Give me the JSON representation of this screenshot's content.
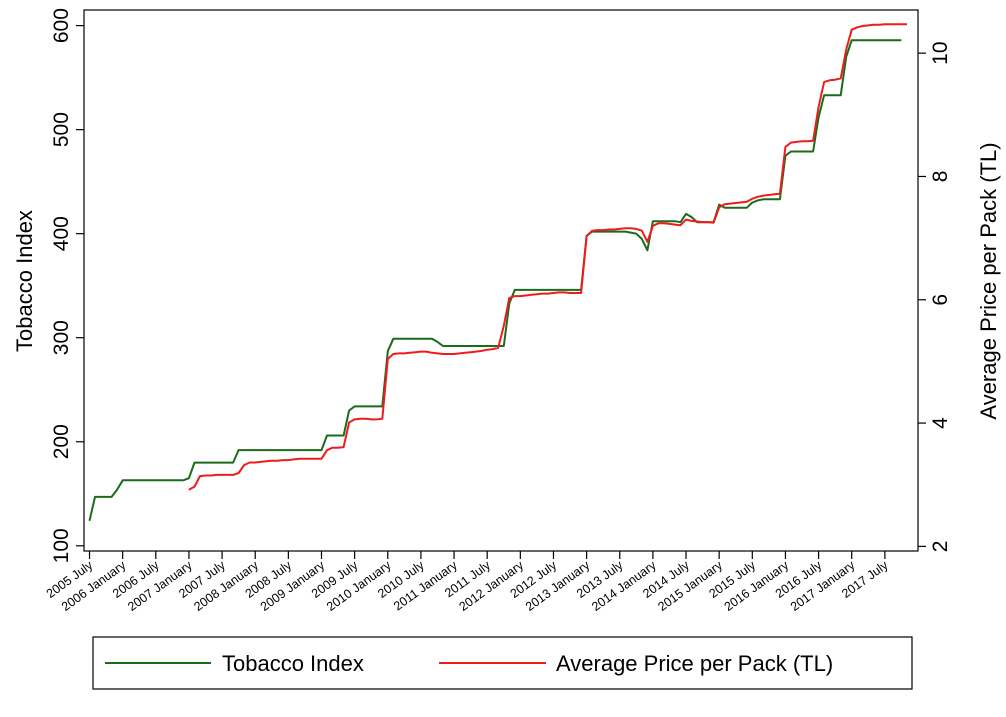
{
  "chart_data": {
    "type": "line",
    "xlabel": "",
    "ylabel_left": "Tobacco Index",
    "ylabel_right": "Average Price per Pack (TL)",
    "grid": false,
    "legend_position": "bottom",
    "x_ticks": [
      "2005 July",
      "2006 January",
      "2006 July",
      "2007 January",
      "2007 July",
      "2008 January",
      "2008 July",
      "2009 January",
      "2009 July",
      "2010 January",
      "2010 July",
      "2011 January",
      "2011 July",
      "2012 January",
      "2012 July",
      "2013 January",
      "2013 July",
      "2014 January",
      "2014 July",
      "2015 January",
      "2015 July",
      "2016 January",
      "2016 July",
      "2017 January",
      "2017 July"
    ],
    "x_range": [
      "2005-06",
      "2018-01"
    ],
    "y_left": {
      "ticks": [
        100,
        200,
        300,
        400,
        500,
        600
      ],
      "range": [
        95,
        615
      ]
    },
    "y_right": {
      "ticks": [
        2,
        4,
        6,
        8,
        10
      ],
      "range": [
        1.925,
        10.7
      ]
    },
    "series": [
      {
        "name": "Tobacco Index",
        "axis": "left",
        "color": "#1a6b1a",
        "points": [
          [
            "2005-07",
            124
          ],
          [
            "2005-08",
            147
          ],
          [
            "2005-09",
            147
          ],
          [
            "2005-10",
            147
          ],
          [
            "2005-11",
            147
          ],
          [
            "2005-12",
            154
          ],
          [
            "2006-01",
            163
          ],
          [
            "2006-02",
            163
          ],
          [
            "2006-03",
            163
          ],
          [
            "2006-04",
            163
          ],
          [
            "2006-05",
            163
          ],
          [
            "2006-06",
            163
          ],
          [
            "2006-07",
            163
          ],
          [
            "2006-08",
            163
          ],
          [
            "2006-09",
            163
          ],
          [
            "2006-10",
            163
          ],
          [
            "2006-11",
            163
          ],
          [
            "2006-12",
            163
          ],
          [
            "2007-01",
            165
          ],
          [
            "2007-02",
            180
          ],
          [
            "2007-03",
            180
          ],
          [
            "2007-04",
            180
          ],
          [
            "2007-05",
            180
          ],
          [
            "2007-06",
            180
          ],
          [
            "2007-07",
            180
          ],
          [
            "2007-08",
            180
          ],
          [
            "2007-09",
            180
          ],
          [
            "2007-10",
            192
          ],
          [
            "2007-11",
            192
          ],
          [
            "2007-12",
            192
          ],
          [
            "2008-01",
            192
          ],
          [
            "2008-02",
            192
          ],
          [
            "2008-03",
            192
          ],
          [
            "2008-04",
            192
          ],
          [
            "2008-05",
            192
          ],
          [
            "2008-06",
            192
          ],
          [
            "2008-07",
            192
          ],
          [
            "2008-08",
            192
          ],
          [
            "2008-09",
            192
          ],
          [
            "2008-10",
            192
          ],
          [
            "2008-11",
            192
          ],
          [
            "2008-12",
            192
          ],
          [
            "2009-01",
            192
          ],
          [
            "2009-02",
            206
          ],
          [
            "2009-03",
            206
          ],
          [
            "2009-04",
            206
          ],
          [
            "2009-05",
            206
          ],
          [
            "2009-06",
            230
          ],
          [
            "2009-07",
            234
          ],
          [
            "2009-08",
            234
          ],
          [
            "2009-09",
            234
          ],
          [
            "2009-10",
            234
          ],
          [
            "2009-11",
            234
          ],
          [
            "2009-12",
            234
          ],
          [
            "2010-01",
            287
          ],
          [
            "2010-02",
            299
          ],
          [
            "2010-03",
            299
          ],
          [
            "2010-04",
            299
          ],
          [
            "2010-05",
            299
          ],
          [
            "2010-06",
            299
          ],
          [
            "2010-07",
            299
          ],
          [
            "2010-08",
            299
          ],
          [
            "2010-09",
            299
          ],
          [
            "2010-10",
            296
          ],
          [
            "2010-11",
            292
          ],
          [
            "2010-12",
            292
          ],
          [
            "2011-01",
            292
          ],
          [
            "2011-02",
            292
          ],
          [
            "2011-03",
            292
          ],
          [
            "2011-04",
            292
          ],
          [
            "2011-05",
            292
          ],
          [
            "2011-06",
            292
          ],
          [
            "2011-07",
            292
          ],
          [
            "2011-08",
            292
          ],
          [
            "2011-09",
            292
          ],
          [
            "2011-10",
            292
          ],
          [
            "2011-11",
            333
          ],
          [
            "2011-12",
            346
          ],
          [
            "2012-01",
            346
          ],
          [
            "2012-02",
            346
          ],
          [
            "2012-03",
            346
          ],
          [
            "2012-04",
            346
          ],
          [
            "2012-05",
            346
          ],
          [
            "2012-06",
            346
          ],
          [
            "2012-07",
            346
          ],
          [
            "2012-08",
            346
          ],
          [
            "2012-09",
            346
          ],
          [
            "2012-10",
            346
          ],
          [
            "2012-11",
            346
          ],
          [
            "2012-12",
            346
          ],
          [
            "2013-01",
            398
          ],
          [
            "2013-02",
            402
          ],
          [
            "2013-03",
            402
          ],
          [
            "2013-04",
            402
          ],
          [
            "2013-05",
            402
          ],
          [
            "2013-06",
            402
          ],
          [
            "2013-07",
            402
          ],
          [
            "2013-08",
            402
          ],
          [
            "2013-09",
            401
          ],
          [
            "2013-10",
            400
          ],
          [
            "2013-11",
            395
          ],
          [
            "2013-12",
            384
          ],
          [
            "2014-01",
            412
          ],
          [
            "2014-02",
            412
          ],
          [
            "2014-03",
            412
          ],
          [
            "2014-04",
            412
          ],
          [
            "2014-05",
            412
          ],
          [
            "2014-06",
            411
          ],
          [
            "2014-07",
            419
          ],
          [
            "2014-08",
            416
          ],
          [
            "2014-09",
            411
          ],
          [
            "2014-10",
            411
          ],
          [
            "2014-11",
            411
          ],
          [
            "2014-12",
            411
          ],
          [
            "2015-01",
            428
          ],
          [
            "2015-02",
            425
          ],
          [
            "2015-03",
            425
          ],
          [
            "2015-04",
            425
          ],
          [
            "2015-05",
            425
          ],
          [
            "2015-06",
            425
          ],
          [
            "2015-07",
            430
          ],
          [
            "2015-08",
            432
          ],
          [
            "2015-09",
            433
          ],
          [
            "2015-10",
            433
          ],
          [
            "2015-11",
            433
          ],
          [
            "2015-12",
            433
          ],
          [
            "2016-01",
            475
          ],
          [
            "2016-02",
            479
          ],
          [
            "2016-03",
            479
          ],
          [
            "2016-04",
            479
          ],
          [
            "2016-05",
            479
          ],
          [
            "2016-06",
            479
          ],
          [
            "2016-07",
            512
          ],
          [
            "2016-08",
            533
          ],
          [
            "2016-09",
            533
          ],
          [
            "2016-10",
            533
          ],
          [
            "2016-11",
            533
          ],
          [
            "2016-12",
            570
          ],
          [
            "2017-01",
            586
          ],
          [
            "2017-02",
            586
          ],
          [
            "2017-03",
            586
          ],
          [
            "2017-04",
            586
          ],
          [
            "2017-05",
            586
          ],
          [
            "2017-06",
            586
          ],
          [
            "2017-07",
            586
          ],
          [
            "2017-08",
            586
          ],
          [
            "2017-09",
            586
          ],
          [
            "2017-10",
            586
          ]
        ]
      },
      {
        "name": "Average Price per Pack (TL)",
        "axis": "right",
        "color": "#ee1c1c",
        "points": [
          [
            "2007-01",
            2.92
          ],
          [
            "2007-02",
            2.97
          ],
          [
            "2007-03",
            3.14
          ],
          [
            "2007-04",
            3.15
          ],
          [
            "2007-05",
            3.15
          ],
          [
            "2007-06",
            3.16
          ],
          [
            "2007-07",
            3.16
          ],
          [
            "2007-08",
            3.16
          ],
          [
            "2007-09",
            3.16
          ],
          [
            "2007-10",
            3.19
          ],
          [
            "2007-11",
            3.32
          ],
          [
            "2007-12",
            3.36
          ],
          [
            "2008-01",
            3.36
          ],
          [
            "2008-02",
            3.37
          ],
          [
            "2008-03",
            3.38
          ],
          [
            "2008-04",
            3.39
          ],
          [
            "2008-05",
            3.39
          ],
          [
            "2008-06",
            3.4
          ],
          [
            "2008-07",
            3.4
          ],
          [
            "2008-08",
            3.41
          ],
          [
            "2008-09",
            3.42
          ],
          [
            "2008-10",
            3.42
          ],
          [
            "2008-11",
            3.42
          ],
          [
            "2008-12",
            3.42
          ],
          [
            "2009-01",
            3.42
          ],
          [
            "2009-02",
            3.56
          ],
          [
            "2009-03",
            3.6
          ],
          [
            "2009-04",
            3.6
          ],
          [
            "2009-05",
            3.61
          ],
          [
            "2009-06",
            4.01
          ],
          [
            "2009-07",
            4.06
          ],
          [
            "2009-08",
            4.07
          ],
          [
            "2009-09",
            4.07
          ],
          [
            "2009-10",
            4.06
          ],
          [
            "2009-11",
            4.06
          ],
          [
            "2009-12",
            4.07
          ],
          [
            "2010-01",
            5.04
          ],
          [
            "2010-02",
            5.12
          ],
          [
            "2010-03",
            5.13
          ],
          [
            "2010-04",
            5.13
          ],
          [
            "2010-05",
            5.14
          ],
          [
            "2010-06",
            5.15
          ],
          [
            "2010-07",
            5.16
          ],
          [
            "2010-08",
            5.16
          ],
          [
            "2010-09",
            5.14
          ],
          [
            "2010-10",
            5.13
          ],
          [
            "2010-11",
            5.12
          ],
          [
            "2010-12",
            5.12
          ],
          [
            "2011-01",
            5.12
          ],
          [
            "2011-02",
            5.13
          ],
          [
            "2011-03",
            5.14
          ],
          [
            "2011-04",
            5.15
          ],
          [
            "2011-05",
            5.16
          ],
          [
            "2011-06",
            5.17
          ],
          [
            "2011-07",
            5.19
          ],
          [
            "2011-08",
            5.2
          ],
          [
            "2011-09",
            5.22
          ],
          [
            "2011-10",
            5.58
          ],
          [
            "2011-11",
            6.03
          ],
          [
            "2011-12",
            6.06
          ],
          [
            "2012-01",
            6.06
          ],
          [
            "2012-02",
            6.07
          ],
          [
            "2012-03",
            6.08
          ],
          [
            "2012-04",
            6.09
          ],
          [
            "2012-05",
            6.1
          ],
          [
            "2012-06",
            6.1
          ],
          [
            "2012-07",
            6.11
          ],
          [
            "2012-08",
            6.12
          ],
          [
            "2012-09",
            6.12
          ],
          [
            "2012-10",
            6.11
          ],
          [
            "2012-11",
            6.11
          ],
          [
            "2012-12",
            6.11
          ],
          [
            "2013-01",
            7.03
          ],
          [
            "2013-02",
            7.12
          ],
          [
            "2013-03",
            7.13
          ],
          [
            "2013-04",
            7.13
          ],
          [
            "2013-05",
            7.14
          ],
          [
            "2013-06",
            7.14
          ],
          [
            "2013-07",
            7.15
          ],
          [
            "2013-08",
            7.16
          ],
          [
            "2013-09",
            7.16
          ],
          [
            "2013-10",
            7.15
          ],
          [
            "2013-11",
            7.12
          ],
          [
            "2013-12",
            6.94
          ],
          [
            "2014-01",
            7.2
          ],
          [
            "2014-02",
            7.24
          ],
          [
            "2014-03",
            7.24
          ],
          [
            "2014-04",
            7.23
          ],
          [
            "2014-05",
            7.22
          ],
          [
            "2014-06",
            7.21
          ],
          [
            "2014-07",
            7.3
          ],
          [
            "2014-08",
            7.28
          ],
          [
            "2014-09",
            7.27
          ],
          [
            "2014-10",
            7.26
          ],
          [
            "2014-11",
            7.26
          ],
          [
            "2014-12",
            7.25
          ],
          [
            "2015-01",
            7.5
          ],
          [
            "2015-02",
            7.55
          ],
          [
            "2015-03",
            7.56
          ],
          [
            "2015-04",
            7.57
          ],
          [
            "2015-05",
            7.58
          ],
          [
            "2015-06",
            7.59
          ],
          [
            "2015-07",
            7.64
          ],
          [
            "2015-08",
            7.67
          ],
          [
            "2015-09",
            7.69
          ],
          [
            "2015-10",
            7.7
          ],
          [
            "2015-11",
            7.71
          ],
          [
            "2015-12",
            7.72
          ],
          [
            "2016-01",
            8.48
          ],
          [
            "2016-02",
            8.55
          ],
          [
            "2016-03",
            8.56
          ],
          [
            "2016-04",
            8.57
          ],
          [
            "2016-05",
            8.57
          ],
          [
            "2016-06",
            8.58
          ],
          [
            "2016-07",
            9.13
          ],
          [
            "2016-08",
            9.53
          ],
          [
            "2016-09",
            9.56
          ],
          [
            "2016-10",
            9.57
          ],
          [
            "2016-11",
            9.59
          ],
          [
            "2016-12",
            10.06
          ],
          [
            "2017-01",
            10.38
          ],
          [
            "2017-02",
            10.42
          ],
          [
            "2017-03",
            10.44
          ],
          [
            "2017-04",
            10.45
          ],
          [
            "2017-05",
            10.46
          ],
          [
            "2017-06",
            10.46
          ],
          [
            "2017-07",
            10.47
          ],
          [
            "2017-08",
            10.47
          ],
          [
            "2017-09",
            10.47
          ],
          [
            "2017-10",
            10.47
          ],
          [
            "2017-11",
            10.47
          ]
        ]
      }
    ]
  }
}
